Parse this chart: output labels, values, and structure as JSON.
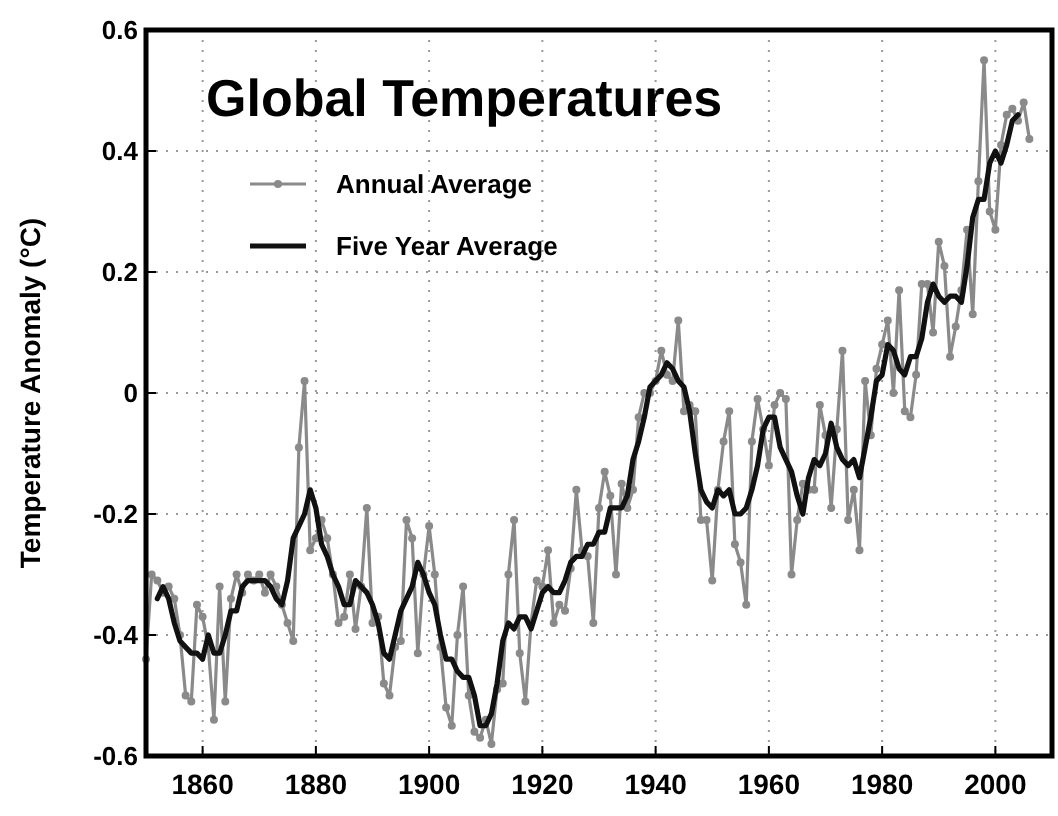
{
  "chart_data": {
    "type": "line",
    "title": "Global Temperatures",
    "ylabel": "Temperature Anomaly (°C)",
    "xlim": [
      1850,
      2010
    ],
    "xticks": [
      1860,
      1880,
      1900,
      1920,
      1940,
      1960,
      1980,
      2000
    ],
    "ylim": [
      -0.6,
      0.6
    ],
    "yticks": [
      -0.6,
      -0.4,
      -0.2,
      0,
      0.2,
      0.4,
      0.6
    ],
    "grid": true,
    "legend": "top left",
    "x": [
      1850,
      1851,
      1852,
      1853,
      1854,
      1855,
      1856,
      1857,
      1858,
      1859,
      1860,
      1861,
      1862,
      1863,
      1864,
      1865,
      1866,
      1867,
      1868,
      1869,
      1870,
      1871,
      1872,
      1873,
      1874,
      1875,
      1876,
      1877,
      1878,
      1879,
      1880,
      1881,
      1882,
      1883,
      1884,
      1885,
      1886,
      1887,
      1888,
      1889,
      1890,
      1891,
      1892,
      1893,
      1894,
      1895,
      1896,
      1897,
      1898,
      1899,
      1900,
      1901,
      1902,
      1903,
      1904,
      1905,
      1906,
      1907,
      1908,
      1909,
      1910,
      1911,
      1912,
      1913,
      1914,
      1915,
      1916,
      1917,
      1918,
      1919,
      1920,
      1921,
      1922,
      1923,
      1924,
      1925,
      1926,
      1927,
      1928,
      1929,
      1930,
      1931,
      1932,
      1933,
      1934,
      1935,
      1936,
      1937,
      1938,
      1939,
      1940,
      1941,
      1942,
      1943,
      1944,
      1945,
      1946,
      1947,
      1948,
      1949,
      1950,
      1951,
      1952,
      1953,
      1954,
      1955,
      1956,
      1957,
      1958,
      1959,
      1960,
      1961,
      1962,
      1963,
      1964,
      1965,
      1966,
      1967,
      1968,
      1969,
      1970,
      1971,
      1972,
      1973,
      1974,
      1975,
      1976,
      1977,
      1978,
      1979,
      1980,
      1981,
      1982,
      1983,
      1984,
      1985,
      1986,
      1987,
      1988,
      1989,
      1990,
      1991,
      1992,
      1993,
      1994,
      1995,
      1996,
      1997,
      1998,
      1999,
      2000,
      2001,
      2002,
      2003,
      2004,
      2005,
      2006
    ],
    "series": [
      {
        "name": "Annual Average",
        "color": "#8a8a8a",
        "marker": "circle",
        "values": [
          -0.44,
          -0.3,
          -0.31,
          -0.33,
          -0.32,
          -0.34,
          -0.4,
          -0.5,
          -0.51,
          -0.35,
          -0.37,
          -0.42,
          -0.54,
          -0.32,
          -0.51,
          -0.34,
          -0.3,
          -0.33,
          -0.3,
          -0.31,
          -0.3,
          -0.33,
          -0.3,
          -0.32,
          -0.35,
          -0.38,
          -0.41,
          -0.09,
          0.02,
          -0.26,
          -0.24,
          -0.21,
          -0.24,
          -0.3,
          -0.38,
          -0.37,
          -0.3,
          -0.39,
          -0.32,
          -0.19,
          -0.38,
          -0.37,
          -0.48,
          -0.5,
          -0.42,
          -0.41,
          -0.21,
          -0.24,
          -0.43,
          -0.3,
          -0.22,
          -0.3,
          -0.42,
          -0.52,
          -0.55,
          -0.4,
          -0.32,
          -0.5,
          -0.56,
          -0.57,
          -0.54,
          -0.58,
          -0.49,
          -0.48,
          -0.3,
          -0.21,
          -0.43,
          -0.51,
          -0.38,
          -0.31,
          -0.32,
          -0.26,
          -0.38,
          -0.35,
          -0.36,
          -0.29,
          -0.16,
          -0.26,
          -0.27,
          -0.38,
          -0.19,
          -0.13,
          -0.17,
          -0.3,
          -0.15,
          -0.19,
          -0.16,
          -0.04,
          0.0,
          0.0,
          0.02,
          0.07,
          0.03,
          0.02,
          0.12,
          -0.03,
          -0.02,
          -0.03,
          -0.21,
          -0.21,
          -0.31,
          -0.16,
          -0.08,
          -0.03,
          -0.25,
          -0.28,
          -0.35,
          -0.08,
          -0.01,
          -0.06,
          -0.12,
          -0.02,
          0.0,
          -0.01,
          -0.3,
          -0.21,
          -0.15,
          -0.16,
          -0.16,
          -0.02,
          -0.07,
          -0.19,
          -0.06,
          0.07,
          -0.21,
          -0.16,
          -0.26,
          0.02,
          -0.07,
          0.04,
          0.08,
          0.12,
          0.0,
          0.17,
          -0.03,
          -0.04,
          0.03,
          0.18,
          0.18,
          0.1,
          0.25,
          0.21,
          0.06,
          0.11,
          0.17,
          0.27,
          0.13,
          0.35,
          0.55,
          0.3,
          0.27,
          0.41,
          0.46,
          0.47,
          0.45,
          0.48,
          0.42
        ]
      },
      {
        "name": "Five Year Average",
        "color": "#111111",
        "marker": "none",
        "x": [
          1852,
          1853,
          1854,
          1855,
          1856,
          1857,
          1858,
          1859,
          1860,
          1861,
          1862,
          1863,
          1864,
          1865,
          1866,
          1867,
          1868,
          1869,
          1870,
          1871,
          1872,
          1873,
          1874,
          1875,
          1876,
          1877,
          1878,
          1879,
          1880,
          1881,
          1882,
          1883,
          1884,
          1885,
          1886,
          1887,
          1888,
          1889,
          1890,
          1891,
          1892,
          1893,
          1894,
          1895,
          1896,
          1897,
          1898,
          1899,
          1900,
          1901,
          1902,
          1903,
          1904,
          1905,
          1906,
          1907,
          1908,
          1909,
          1910,
          1911,
          1912,
          1913,
          1914,
          1915,
          1916,
          1917,
          1918,
          1919,
          1920,
          1921,
          1922,
          1923,
          1924,
          1925,
          1926,
          1927,
          1928,
          1929,
          1930,
          1931,
          1932,
          1933,
          1934,
          1935,
          1936,
          1937,
          1938,
          1939,
          1940,
          1941,
          1942,
          1943,
          1944,
          1945,
          1946,
          1947,
          1948,
          1949,
          1950,
          1951,
          1952,
          1953,
          1954,
          1955,
          1956,
          1957,
          1958,
          1959,
          1960,
          1961,
          1962,
          1963,
          1964,
          1965,
          1966,
          1967,
          1968,
          1969,
          1970,
          1971,
          1972,
          1973,
          1974,
          1975,
          1976,
          1977,
          1978,
          1979,
          1980,
          1981,
          1982,
          1983,
          1984,
          1985,
          1986,
          1987,
          1988,
          1989,
          1990,
          1991,
          1992,
          1993,
          1994,
          1995,
          1996,
          1997,
          1998,
          1999,
          2000,
          2001,
          2002,
          2003,
          2004
        ],
        "values": [
          -0.34,
          -0.32,
          -0.34,
          -0.38,
          -0.41,
          -0.42,
          -0.43,
          -0.43,
          -0.44,
          -0.4,
          -0.43,
          -0.43,
          -0.4,
          -0.36,
          -0.36,
          -0.32,
          -0.31,
          -0.31,
          -0.31,
          -0.31,
          -0.32,
          -0.34,
          -0.35,
          -0.31,
          -0.24,
          -0.22,
          -0.2,
          -0.16,
          -0.19,
          -0.25,
          -0.27,
          -0.3,
          -0.32,
          -0.35,
          -0.35,
          -0.31,
          -0.32,
          -0.33,
          -0.35,
          -0.38,
          -0.43,
          -0.44,
          -0.4,
          -0.36,
          -0.34,
          -0.32,
          -0.28,
          -0.3,
          -0.33,
          -0.35,
          -0.4,
          -0.44,
          -0.44,
          -0.46,
          -0.47,
          -0.47,
          -0.5,
          -0.55,
          -0.55,
          -0.53,
          -0.48,
          -0.41,
          -0.38,
          -0.39,
          -0.37,
          -0.37,
          -0.39,
          -0.36,
          -0.33,
          -0.32,
          -0.33,
          -0.33,
          -0.31,
          -0.28,
          -0.27,
          -0.27,
          -0.25,
          -0.25,
          -0.23,
          -0.23,
          -0.19,
          -0.19,
          -0.19,
          -0.17,
          -0.11,
          -0.08,
          -0.04,
          0.01,
          0.02,
          0.03,
          0.05,
          0.04,
          0.02,
          0.01,
          -0.03,
          -0.1,
          -0.16,
          -0.18,
          -0.19,
          -0.16,
          -0.17,
          -0.16,
          -0.2,
          -0.2,
          -0.19,
          -0.16,
          -0.12,
          -0.06,
          -0.04,
          -0.04,
          -0.09,
          -0.11,
          -0.13,
          -0.17,
          -0.2,
          -0.14,
          -0.11,
          -0.12,
          -0.1,
          -0.05,
          -0.09,
          -0.11,
          -0.12,
          -0.11,
          -0.14,
          -0.09,
          -0.04,
          0.02,
          0.03,
          0.08,
          0.07,
          0.04,
          0.03,
          0.06,
          0.06,
          0.09,
          0.15,
          0.18,
          0.16,
          0.15,
          0.16,
          0.16,
          0.15,
          0.21,
          0.29,
          0.32,
          0.32,
          0.38,
          0.4,
          0.38,
          0.41,
          0.45,
          0.46
        ]
      }
    ]
  }
}
